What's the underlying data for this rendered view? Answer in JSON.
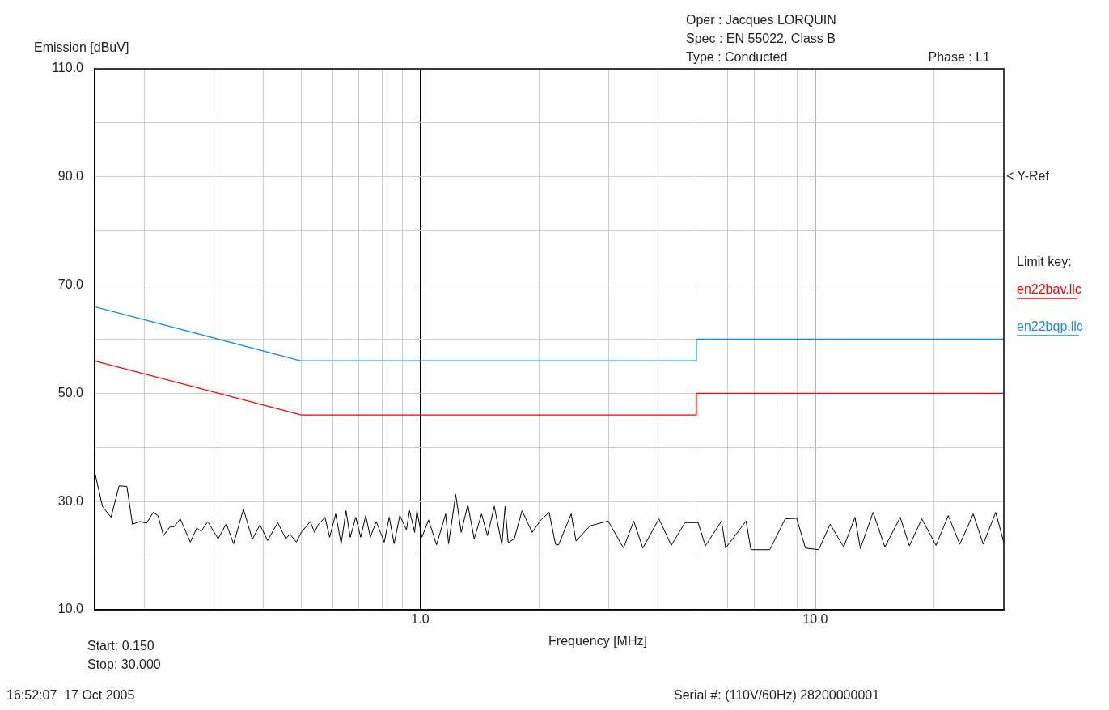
{
  "chart_data": {
    "type": "line",
    "xlabel": "Frequency [MHz]",
    "ylabel": "Emission [dBuV]",
    "legend_title": "Limit key:",
    "legend": "right",
    "log": "x",
    "grid": true,
    "marker": "none",
    "line_style": "solid",
    "xlim": [
      0.15,
      30
    ],
    "xticks": [
      {
        "value": 0.2,
        "label": null
      },
      {
        "value": 0.3,
        "label": null
      },
      {
        "value": 0.4,
        "label": null
      },
      {
        "value": 0.5,
        "label": null
      },
      {
        "value": 0.6,
        "label": null
      },
      {
        "value": 0.7,
        "label": null
      },
      {
        "value": 0.8,
        "label": null
      },
      {
        "value": 0.9,
        "label": null
      },
      {
        "value": 1,
        "label": "1.0"
      },
      {
        "value": 2,
        "label": null
      },
      {
        "value": 3,
        "label": null
      },
      {
        "value": 4,
        "label": null
      },
      {
        "value": 5,
        "label": null
      },
      {
        "value": 6,
        "label": null
      },
      {
        "value": 7,
        "label": null
      },
      {
        "value": 8,
        "label": null
      },
      {
        "value": 9,
        "label": null
      },
      {
        "value": 10,
        "label": "10.0"
      },
      {
        "value": 20,
        "label": null
      }
    ],
    "ylim": [
      10,
      110
    ],
    "yticks": [
      {
        "value": 10,
        "label": "10.0"
      },
      {
        "value": 20,
        "label": null
      },
      {
        "value": 30,
        "label": "30.0"
      },
      {
        "value": 40,
        "label": null
      },
      {
        "value": 50,
        "label": "50.0"
      },
      {
        "value": 60,
        "label": null
      },
      {
        "value": 70,
        "label": "70.0"
      },
      {
        "value": 80,
        "label": null
      },
      {
        "value": 90,
        "label": "90.0"
      },
      {
        "value": 100,
        "label": null
      },
      {
        "value": 110,
        "label": "110.0"
      }
    ],
    "series": [
      {
        "name": "en22bav.llc",
        "color": "#ff0000",
        "x": [
          0.15,
          0.5,
          5,
          5,
          30
        ],
        "values": [
          56,
          46,
          46,
          50,
          50
        ]
      },
      {
        "name": "en22bqp.llc",
        "color": "#1f8ad6",
        "x": [
          0.15,
          0.5,
          5,
          5,
          30
        ],
        "values": [
          66,
          56,
          56,
          60,
          60
        ]
      },
      {
        "color": "#000000",
        "x": [
          0.15,
          0.157,
          0.165,
          0.173,
          0.181,
          0.187,
          0.195,
          0.203,
          0.211,
          0.217,
          0.224,
          0.233,
          0.238,
          0.247,
          0.262,
          0.272,
          0.279,
          0.29,
          0.308,
          0.323,
          0.337,
          0.357,
          0.376,
          0.393,
          0.411,
          0.436,
          0.457,
          0.468,
          0.486,
          0.5,
          0.527,
          0.54,
          0.552,
          0.574,
          0.59,
          0.611,
          0.631,
          0.649,
          0.665,
          0.687,
          0.707,
          0.728,
          0.748,
          0.774,
          0.811,
          0.835,
          0.859,
          0.888,
          0.923,
          0.94,
          0.968,
          0.981,
          1.01,
          1.05,
          1.1,
          1.16,
          1.18,
          1.23,
          1.27,
          1.32,
          1.37,
          1.43,
          1.48,
          1.54,
          1.61,
          1.64,
          1.67,
          1.73,
          1.81,
          1.92,
          2.02,
          2.12,
          2.2,
          2.24,
          2.41,
          2.48,
          2.69,
          2.99,
          3.27,
          3.47,
          3.66,
          4.02,
          4.32,
          4.68,
          5.05,
          5.27,
          5.79,
          5.93,
          6.68,
          6.87,
          7.67,
          8.39,
          8.97,
          9.44,
          10.2,
          10.9,
          11.8,
          12.6,
          13.0,
          14.0,
          15.0,
          16.4,
          17.3,
          18.6,
          20.2,
          21.7,
          23.2,
          25.1,
          26.6,
          28.6,
          30
        ],
        "values": [
          35.5,
          29.1,
          27.1,
          32.9,
          32.8,
          25.8,
          26.3,
          26,
          28,
          27.4,
          23.7,
          25.4,
          25.3,
          26.8,
          22.5,
          25.1,
          24.5,
          26.3,
          23.1,
          25.9,
          22.2,
          28.6,
          23,
          25.7,
          22.8,
          26.1,
          23.1,
          24,
          22.5,
          24.3,
          26.3,
          24.3,
          25.7,
          27.1,
          23.4,
          27.7,
          22.2,
          28.3,
          23.4,
          27.1,
          23.4,
          27.4,
          23.4,
          26.3,
          22.5,
          27.1,
          22.2,
          27.4,
          24.8,
          28.3,
          24.3,
          28.3,
          23.4,
          26.6,
          22,
          27.7,
          22.2,
          31.3,
          24.3,
          29.4,
          23.1,
          27.7,
          23.7,
          29.1,
          22,
          29.1,
          22.4,
          23.1,
          28.3,
          24.3,
          26.6,
          28,
          22.1,
          22,
          27.7,
          22.7,
          25.5,
          26.4,
          21.4,
          26.4,
          21.4,
          26.8,
          21.9,
          26.1,
          26.1,
          21.8,
          26.4,
          21.4,
          26.4,
          21.1,
          21.1,
          26.8,
          26.9,
          21.4,
          21.1,
          25.8,
          21.6,
          27.1,
          21.3,
          28,
          21.6,
          27.1,
          21.8,
          26.8,
          21.9,
          27.4,
          22.1,
          27.7,
          22.1,
          28,
          22.4
        ]
      }
    ],
    "annotations": [
      "< Y-Ref",
      "Oper : Jacques LORQUIN",
      "Spec : EN 55022, Class B",
      "Type : Conducted",
      "Phase : L1",
      "Start: 0.150",
      "Stop: 30.000",
      "16:52:07  17 Oct 2005",
      "Serial #: (110V/60Hz) 28200000001"
    ]
  }
}
